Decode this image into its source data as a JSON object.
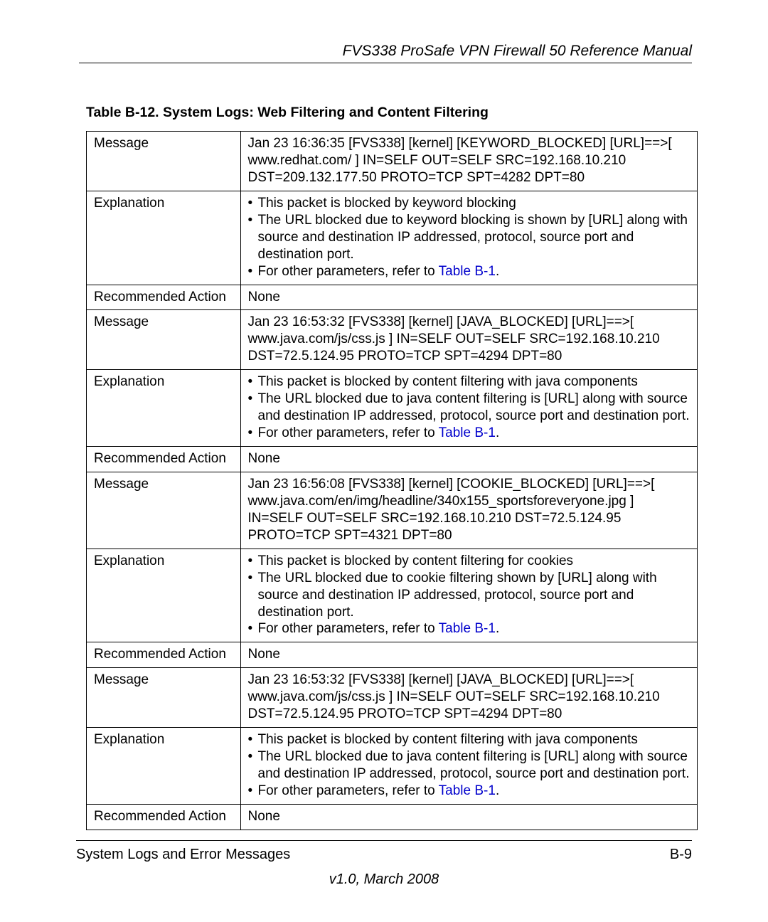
{
  "header": {
    "title": "FVS338 ProSafe VPN Firewall 50 Reference Manual"
  },
  "table_title": "Table B-12. System Logs: Web Filtering and Content Filtering",
  "link_color": "#0000cc",
  "rows": [
    {
      "label": "Message",
      "type": "text",
      "lines": [
        "Jan 23 16:36:35 [FVS338] [kernel] [KEYWORD_BLOCKED] [URL]==>[ www.redhat.com/ ] IN=SELF OUT=SELF SRC=192.168.10.210 DST=209.132.177.50 PROTO=TCP SPT=4282 DPT=80"
      ]
    },
    {
      "label": "Explanation",
      "type": "bullets",
      "bullets": [
        {
          "text": "This packet is blocked by keyword blocking"
        },
        {
          "text": "The URL blocked due to keyword blocking is shown by [URL] along with source and destination IP addressed, protocol, source port and destination port."
        },
        {
          "text": "For other parameters, refer to ",
          "link": "Table B-1",
          "after": "."
        }
      ]
    },
    {
      "label": "Recommended Action",
      "type": "text",
      "lines": [
        "None"
      ]
    },
    {
      "label": "Message",
      "type": "text",
      "lines": [
        "Jan 23 16:53:32 [FVS338] [kernel] [JAVA_BLOCKED] [URL]==>[ www.java.com/js/css.js ] IN=SELF OUT=SELF SRC=192.168.10.210 DST=72.5.124.95 PROTO=TCP SPT=4294 DPT=80"
      ]
    },
    {
      "label": "Explanation",
      "type": "bullets",
      "bullets": [
        {
          "text": "This packet is blocked by content filtering with java components"
        },
        {
          "text": "The URL blocked due to java content filtering is [URL] along with source and destination IP addressed, protocol, source port and destination port."
        },
        {
          "text": "For other parameters, refer to ",
          "link": "Table B-1",
          "after": "."
        }
      ]
    },
    {
      "label": "Recommended Action",
      "type": "text",
      "lines": [
        "None"
      ]
    },
    {
      "label": "Message",
      "type": "text",
      "lines": [
        "Jan 23 16:56:08 [FVS338] [kernel] [COOKIE_BLOCKED] [URL]==>[ www.java.com/en/img/headline/340x155_sportsforeveryone.jpg ] IN=SELF OUT=SELF SRC=192.168.10.210 DST=72.5.124.95 PROTO=TCP SPT=4321 DPT=80"
      ]
    },
    {
      "label": "Explanation",
      "type": "bullets",
      "bullets": [
        {
          "text": "This packet is blocked by content filtering for cookies"
        },
        {
          "text": "The URL blocked due to cookie filtering shown by [URL] along with source and destination IP addressed, protocol, source port and destination port."
        },
        {
          "text": "For other parameters, refer to ",
          "link": "Table B-1",
          "after": "."
        }
      ]
    },
    {
      "label": "Recommended Action",
      "type": "text",
      "lines": [
        "None"
      ]
    },
    {
      "label": "Message",
      "type": "text",
      "lines": [
        "Jan 23 16:53:32 [FVS338] [kernel] [JAVA_BLOCKED] [URL]==>[ www.java.com/js/css.js ] IN=SELF OUT=SELF SRC=192.168.10.210 DST=72.5.124.95 PROTO=TCP SPT=4294 DPT=80"
      ]
    },
    {
      "label": "Explanation",
      "type": "bullets",
      "bullets": [
        {
          "text": "This packet is blocked by content filtering with java components"
        },
        {
          "text": "The URL blocked due to java content filtering is [URL] along with source and destination IP addressed, protocol, source port and destination port."
        },
        {
          "text": "For other parameters, refer to ",
          "link": "Table B-1",
          "after": "."
        }
      ]
    },
    {
      "label": "Recommended Action",
      "type": "text",
      "lines": [
        "None"
      ]
    }
  ],
  "footer": {
    "left": "System Logs and Error Messages",
    "right": "B-9",
    "version": "v1.0, March 2008"
  }
}
